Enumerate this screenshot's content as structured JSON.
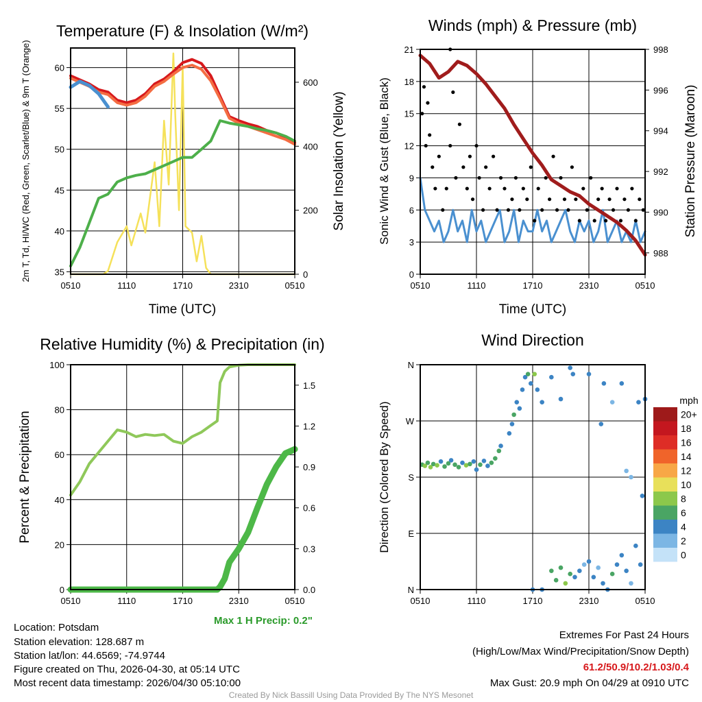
{
  "footer": {
    "location": "Location: Potsdam",
    "elevation": "Station elevation: 128.687 m",
    "latlon": "Station lat/lon: 44.6569; -74.9744",
    "created": "Figure created on Thu, 2026-04-30, at 05:14 UTC",
    "recent": "Most recent data timestamp: 2026/04/30 05:10:00",
    "extremes_title": "Extremes For Past 24 Hours",
    "extremes_sub": "(High/Low/Max Wind/Precipitation/Snow Depth)",
    "extremes_values": "61.2/50.9/10.2/1.03/0.4",
    "max_gust": "Max Gust: 20.9 mph On 04/29 at 0910 UTC",
    "credit": "Created By Nick Bassill Using Data Provided By The NYS Mesonet",
    "max_precip": "Max 1 H Precip: 0.2\""
  },
  "colors": {
    "red": "#d7191c",
    "orange": "#f46d43",
    "green": "#4daf4a",
    "blue": "#4a90d0",
    "yellow": "#f5e15a",
    "maroon": "#a01c1c",
    "rh": "#8fc85a",
    "precip": "#4db848",
    "precip_text": "#2a9a2a",
    "extremes": "#d7191c"
  },
  "chart_data": [
    {
      "type": "line",
      "title": "Temperature (F) & Insolation (W/m²)",
      "xlabel": "Time (UTC)",
      "ylabel": "2m T, Td, HI/WC (Red, Green, Scarlet/Blue) & 9m T (Orange)",
      "y2label": "Solar Insolation (Yellow)",
      "xticks": [
        "0510",
        "1110",
        "1710",
        "2310",
        "0510"
      ],
      "yticks": [
        35,
        40,
        45,
        50,
        55,
        60
      ],
      "y2ticks": [
        0,
        200,
        400,
        600
      ],
      "xlim": [
        0,
        24
      ],
      "ylim": [
        34.7,
        62.4
      ],
      "y2lim": [
        0,
        707
      ],
      "x": [
        0,
        1,
        2,
        3,
        4,
        5,
        6,
        7,
        8,
        9,
        10,
        11,
        12,
        13,
        14,
        15,
        16,
        17,
        18,
        19,
        20,
        21,
        22,
        23,
        24
      ],
      "series": [
        {
          "name": "2m T",
          "color": "red",
          "values": [
            59,
            58.5,
            58,
            57.3,
            57,
            56,
            55.7,
            56,
            56.8,
            58,
            58.6,
            59.5,
            60.6,
            61,
            60.5,
            59,
            56.5,
            54,
            53.5,
            53.1,
            52.8,
            52.3,
            52,
            51.5,
            50.8
          ]
        },
        {
          "name": "9m T",
          "color": "orange",
          "values": [
            58.7,
            58.2,
            57.7,
            57,
            56.7,
            55.7,
            55.4,
            55.7,
            56.5,
            57.7,
            58.3,
            59.2,
            60,
            60.3,
            59.8,
            58.4,
            56.2,
            53.8,
            53.2,
            52.8,
            52.4,
            52,
            51.6,
            51.2,
            50.6
          ]
        },
        {
          "name": "Td",
          "color": "green",
          "values": [
            35.7,
            38,
            41,
            44,
            44.5,
            46,
            46.5,
            46.8,
            47,
            47.5,
            48,
            48.5,
            49,
            49,
            50,
            51,
            53.5,
            53.2,
            53,
            52.8,
            52.5,
            52.3,
            52,
            51.6,
            51
          ]
        },
        {
          "name": "HI/WC",
          "color": "blue",
          "values": [
            57.6,
            58.3,
            57.8,
            56.8,
            55.2,
            null,
            null,
            null,
            55.5,
            null,
            null,
            null,
            null,
            null,
            null,
            56,
            null,
            null,
            null,
            null,
            null,
            51.3,
            null,
            50.4,
            null
          ]
        }
      ],
      "y2series": {
        "name": "Solar",
        "color": "yellow",
        "x": [
          0,
          3.5,
          4,
          5,
          6,
          6.5,
          7,
          7.5,
          8,
          9,
          9.5,
          10,
          10.5,
          11,
          11.2,
          11.6,
          12,
          12.3,
          13,
          13.5,
          14,
          14.5,
          15,
          24
        ],
        "values": [
          0,
          0,
          10,
          100,
          150,
          90,
          140,
          190,
          130,
          350,
          150,
          480,
          280,
          690,
          500,
          200,
          650,
          150,
          130,
          40,
          120,
          20,
          0,
          0
        ]
      }
    },
    {
      "type": "line",
      "title": "Winds (mph) & Pressure (mb)",
      "xlabel": "Time (UTC)",
      "ylabel": "Sonic Wind & Gust (Blue, Black)",
      "y2label": "Station Pressure (Maroon)",
      "xticks": [
        "0510",
        "1110",
        "1710",
        "2310",
        "0510"
      ],
      "yticks": [
        0,
        3,
        6,
        9,
        12,
        15,
        18,
        21
      ],
      "y2ticks": [
        988,
        990,
        992,
        994,
        996,
        998
      ],
      "xlim": [
        0,
        24
      ],
      "ylim": [
        0,
        21
      ],
      "y2lim": [
        986.95,
        998
      ],
      "wind_x_step": 0.5,
      "wind": [
        9,
        6,
        5,
        4,
        5,
        3,
        4,
        6,
        4,
        5,
        3,
        6,
        4,
        5,
        3,
        4,
        5,
        6,
        3,
        4,
        6,
        3,
        5,
        4,
        4,
        6,
        4,
        5,
        3,
        4,
        5,
        6,
        4,
        3,
        5,
        4,
        5,
        3,
        4,
        6,
        3,
        4,
        5,
        3,
        4,
        3,
        5,
        3,
        4
      ],
      "gust": [
        [
          0.2,
          15
        ],
        [
          0.4,
          17.5
        ],
        [
          0.6,
          12
        ],
        [
          0.8,
          16
        ],
        [
          1,
          13
        ],
        [
          1.3,
          10
        ],
        [
          1.6,
          8
        ],
        [
          2,
          11
        ],
        [
          2.4,
          6
        ],
        [
          2.8,
          8
        ],
        [
          3.2,
          12
        ],
        [
          3.5,
          17
        ],
        [
          3.8,
          9
        ],
        [
          4.2,
          14
        ],
        [
          4.6,
          10
        ],
        [
          5,
          8
        ],
        [
          5.3,
          11
        ],
        [
          5.6,
          7
        ],
        [
          6,
          12
        ],
        [
          6.3,
          9
        ],
        [
          6.7,
          6
        ],
        [
          7,
          10
        ],
        [
          7.4,
          8
        ],
        [
          7.8,
          11
        ],
        [
          8.2,
          6
        ],
        [
          8.6,
          9
        ],
        [
          9,
          8
        ],
        [
          9.4,
          6
        ],
        [
          9.8,
          7
        ],
        [
          10.2,
          9
        ],
        [
          10.6,
          6
        ],
        [
          11,
          8
        ],
        [
          11.4,
          7
        ],
        [
          11.8,
          10
        ],
        [
          12.2,
          5
        ],
        [
          12.6,
          8
        ],
        [
          13,
          6
        ],
        [
          13.4,
          9
        ],
        [
          13.8,
          7
        ],
        [
          14.2,
          11
        ],
        [
          14.6,
          6
        ],
        [
          15,
          9
        ],
        [
          15.4,
          7
        ],
        [
          15.8,
          6
        ],
        [
          16.2,
          10
        ],
        [
          16.6,
          7
        ],
        [
          17,
          5
        ],
        [
          17.4,
          8
        ],
        [
          17.8,
          6
        ],
        [
          18.2,
          9
        ],
        [
          18.6,
          5
        ],
        [
          19,
          7
        ],
        [
          19.4,
          8
        ],
        [
          19.8,
          5
        ],
        [
          20.2,
          7
        ],
        [
          20.6,
          6
        ],
        [
          21,
          8
        ],
        [
          21.4,
          5
        ],
        [
          21.8,
          7
        ],
        [
          22.2,
          6
        ],
        [
          22.6,
          8
        ],
        [
          23,
          5
        ],
        [
          23.4,
          7
        ],
        [
          23.8,
          6
        ],
        [
          3.2,
          21
        ]
      ],
      "pressure_x_step": 1,
      "pressure": [
        997.7,
        997.3,
        996.6,
        996.9,
        997.4,
        997.2,
        996.8,
        996.3,
        995.7,
        995.1,
        994.3,
        993.6,
        992.9,
        992.3,
        991.6,
        991.3,
        991,
        990.8,
        990.4,
        990.1,
        989.8,
        989.5,
        989.1,
        988.6,
        987.9
      ]
    },
    {
      "type": "line",
      "title": "Relative Humidity (%) & Precipitation (in)",
      "xlabel": "",
      "ylabel": "Percent & Precipitation",
      "xticks": [
        "0510",
        "1110",
        "1710",
        "2310",
        "0510"
      ],
      "yticks": [
        0,
        20,
        40,
        60,
        80,
        100
      ],
      "y2ticks": [
        "0.0",
        "0.3",
        "0.6",
        "0.9",
        "1.2",
        "1.5"
      ],
      "xlim": [
        0,
        24
      ],
      "ylim": [
        0,
        100
      ],
      "y2lim": [
        0,
        1.65
      ],
      "x": [
        0,
        1,
        2,
        3,
        4,
        5,
        6,
        7,
        8,
        9,
        10,
        11,
        12,
        13,
        14,
        15,
        15.7,
        16,
        16.5,
        17,
        18,
        19,
        20,
        21,
        22,
        23,
        24
      ],
      "series": [
        {
          "name": "RH",
          "color": "rh",
          "values": [
            42,
            48,
            56,
            61,
            66,
            71,
            70,
            68,
            69,
            68.5,
            69,
            66,
            65,
            68,
            70,
            73,
            75,
            92,
            97,
            99,
            99.8,
            100,
            100,
            100,
            100,
            100,
            100
          ]
        },
        {
          "name": "Precip",
          "color": "precip",
          "axis": "y2",
          "values": [
            0,
            0,
            0,
            0,
            0,
            0,
            0,
            0,
            0,
            0,
            0,
            0,
            0,
            0,
            0,
            0,
            0,
            0.02,
            0.08,
            0.2,
            0.3,
            0.42,
            0.6,
            0.77,
            0.9,
            1.0,
            1.03
          ]
        }
      ]
    },
    {
      "type": "scatter",
      "title": "Wind Direction",
      "ylabel": "Direction (Colored By Speed)",
      "xticks": [
        "0510",
        "1110",
        "1710",
        "2310",
        "0510"
      ],
      "yticks": [
        "N",
        "E",
        "S",
        "W",
        "N"
      ],
      "xlim": [
        0,
        24
      ],
      "ylim": [
        0,
        360
      ],
      "colorbar_label": "mph",
      "colorbar_ticks": [
        "20+",
        "18",
        "16",
        "14",
        "12",
        "10",
        "8",
        "6",
        "4",
        "2",
        "0"
      ],
      "colorbar_colors": [
        "#9e1a1a",
        "#c4171f",
        "#de2d26",
        "#f0642a",
        "#f8a746",
        "#e8e05a",
        "#8cc84b",
        "#4aa564",
        "#3c84c4",
        "#7cb6e4",
        "#c4e2f8"
      ],
      "points": [
        [
          0.2,
          200,
          5
        ],
        [
          0.5,
          198,
          7
        ],
        [
          0.8,
          203,
          6
        ],
        [
          1.1,
          196,
          8
        ],
        [
          1.4,
          201,
          5
        ],
        [
          1.8,
          199,
          7
        ],
        [
          2.2,
          205,
          4
        ],
        [
          2.6,
          197,
          6
        ],
        [
          3,
          202,
          5
        ],
        [
          3.3,
          207,
          4
        ],
        [
          3.7,
          200,
          6
        ],
        [
          4.1,
          196,
          5
        ],
        [
          4.5,
          203,
          4
        ],
        [
          4.9,
          199,
          7
        ],
        [
          5.3,
          201,
          5
        ],
        [
          5.7,
          205,
          4
        ],
        [
          6,
          192,
          4
        ],
        [
          6.4,
          200,
          5
        ],
        [
          6.8,
          206,
          3
        ],
        [
          7.2,
          198,
          4
        ],
        [
          7.6,
          203,
          6
        ],
        [
          8,
          210,
          5
        ],
        [
          8.4,
          222,
          6
        ],
        [
          8.6,
          230,
          4
        ],
        [
          9.5,
          250,
          4
        ],
        [
          9.8,
          265,
          3
        ],
        [
          10,
          280,
          5
        ],
        [
          10.3,
          300,
          4
        ],
        [
          10.6,
          290,
          3
        ],
        [
          10.9,
          320,
          4
        ],
        [
          11.2,
          340,
          3
        ],
        [
          11.5,
          345,
          5
        ],
        [
          11.8,
          330,
          4
        ],
        [
          12.2,
          345,
          7
        ],
        [
          12.5,
          320,
          3
        ],
        [
          13,
          300,
          4
        ],
        [
          14,
          340,
          3
        ],
        [
          15,
          305,
          4
        ],
        [
          16,
          355,
          3
        ],
        [
          16.3,
          345,
          4
        ],
        [
          18,
          345,
          3
        ],
        [
          19.3,
          265,
          4
        ],
        [
          19.6,
          330,
          4
        ],
        [
          20.5,
          300,
          2
        ],
        [
          21.5,
          330,
          4
        ],
        [
          22,
          190,
          2
        ],
        [
          22.5,
          180,
          1
        ],
        [
          23.3,
          300,
          3
        ],
        [
          23.7,
          150,
          3
        ],
        [
          24,
          305,
          3
        ],
        [
          12,
          0,
          4
        ],
        [
          13,
          0,
          3
        ],
        [
          14,
          30,
          5
        ],
        [
          14.5,
          15,
          6
        ],
        [
          15,
          35,
          6
        ],
        [
          15.5,
          10,
          7
        ],
        [
          16,
          25,
          5
        ],
        [
          16.5,
          20,
          4
        ],
        [
          17,
          30,
          3
        ],
        [
          17.5,
          40,
          2
        ],
        [
          18,
          45,
          3
        ],
        [
          18.5,
          20,
          4
        ],
        [
          19,
          35,
          2
        ],
        [
          19.5,
          10,
          4
        ],
        [
          20,
          0,
          3
        ],
        [
          20.5,
          25,
          5
        ],
        [
          21,
          40,
          4
        ],
        [
          21.5,
          55,
          3
        ],
        [
          22,
          30,
          4
        ],
        [
          22.5,
          10,
          2
        ],
        [
          23,
          70,
          4
        ],
        [
          23.5,
          40,
          3
        ]
      ]
    }
  ]
}
